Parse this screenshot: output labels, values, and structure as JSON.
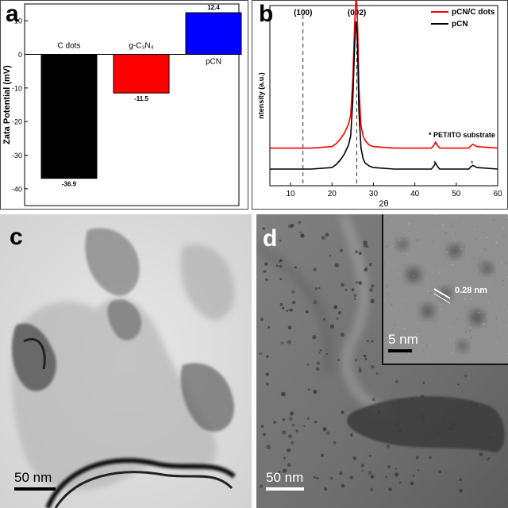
{
  "panel_labels": {
    "a": "a",
    "b": "b",
    "c": "c",
    "d": "d"
  },
  "chart_data": [
    {
      "type": "bar",
      "panel": "a",
      "ylabel": "Zata Potential (mV)",
      "ylim": [
        -45,
        15
      ],
      "yticks": [
        10,
        0,
        -10,
        -20,
        -30,
        -40
      ],
      "ytick_labels": [
        "10",
        "0",
        "-10",
        "-20",
        "-30",
        "-40"
      ],
      "categories": [
        "C dots",
        "g-C₃N₄",
        "pCN"
      ],
      "values": [
        -36.9,
        -11.5,
        12.4
      ],
      "value_labels": [
        "-36.9",
        "-11.5",
        "12.4"
      ],
      "colors": [
        "#000000",
        "#ff0000",
        "#0000ff"
      ]
    },
    {
      "type": "line",
      "panel": "b",
      "xlabel": "2θ",
      "ylabel": "ntensity (a.u.)",
      "xlim": [
        5,
        60
      ],
      "xticks": [
        10,
        20,
        30,
        40,
        50,
        60
      ],
      "xtick_labels": [
        "10",
        "20",
        "30",
        "40",
        "50",
        "60"
      ],
      "series": [
        {
          "name": "pCN/C dots",
          "color": "#ff0000",
          "baseline": 0.12,
          "x": [
            5,
            10,
            15,
            20,
            21,
            22,
            23,
            24,
            24.5,
            25,
            25.5,
            25.8,
            26,
            26.2,
            26.5,
            27,
            27.5,
            28,
            29,
            30,
            35,
            40,
            44,
            44.6,
            45,
            45.4,
            46,
            50,
            53,
            53.5,
            54,
            55,
            60
          ],
          "y": [
            0,
            0,
            0,
            0.01,
            0.03,
            0.06,
            0.1,
            0.16,
            0.22,
            0.45,
            0.85,
            1.0,
            0.95,
            0.8,
            0.4,
            0.15,
            0.08,
            0.05,
            0.02,
            0.01,
            0,
            0,
            0,
            0.02,
            0.04,
            0.02,
            0,
            0,
            0,
            0.015,
            0.025,
            0.01,
            0
          ]
        },
        {
          "name": "pCN",
          "color": "#000000",
          "baseline": 0,
          "x": [
            5,
            10,
            15,
            20,
            21,
            22,
            23,
            24,
            24.5,
            25,
            25.5,
            25.8,
            26,
            26.2,
            26.5,
            27,
            27.5,
            28,
            29,
            30,
            35,
            40,
            44,
            44.6,
            45,
            45.4,
            46,
            50,
            53,
            53.5,
            54,
            55,
            60
          ],
          "y": [
            0,
            0,
            0,
            0.01,
            0.03,
            0.06,
            0.1,
            0.16,
            0.22,
            0.45,
            0.85,
            0.98,
            0.93,
            0.78,
            0.38,
            0.14,
            0.07,
            0.04,
            0.02,
            0.01,
            0,
            0,
            0,
            0.02,
            0.04,
            0.02,
            0,
            0,
            0,
            0.015,
            0.025,
            0.01,
            0
          ]
        }
      ],
      "reference_lines": [
        {
          "x": 13,
          "label": "(100)"
        },
        {
          "x": 26,
          "label": "(002)"
        }
      ],
      "annotations": [
        {
          "x": 44.8,
          "label": "*"
        },
        {
          "x": 53.8,
          "label": "*"
        }
      ],
      "note": "* PET/ITO substrate"
    }
  ],
  "images": {
    "c": {
      "scalebar": "50 nm"
    },
    "d": {
      "scalebar": "50 nm",
      "inset_scalebar": "5 nm",
      "inset_annotation": "0.28 nm"
    }
  }
}
